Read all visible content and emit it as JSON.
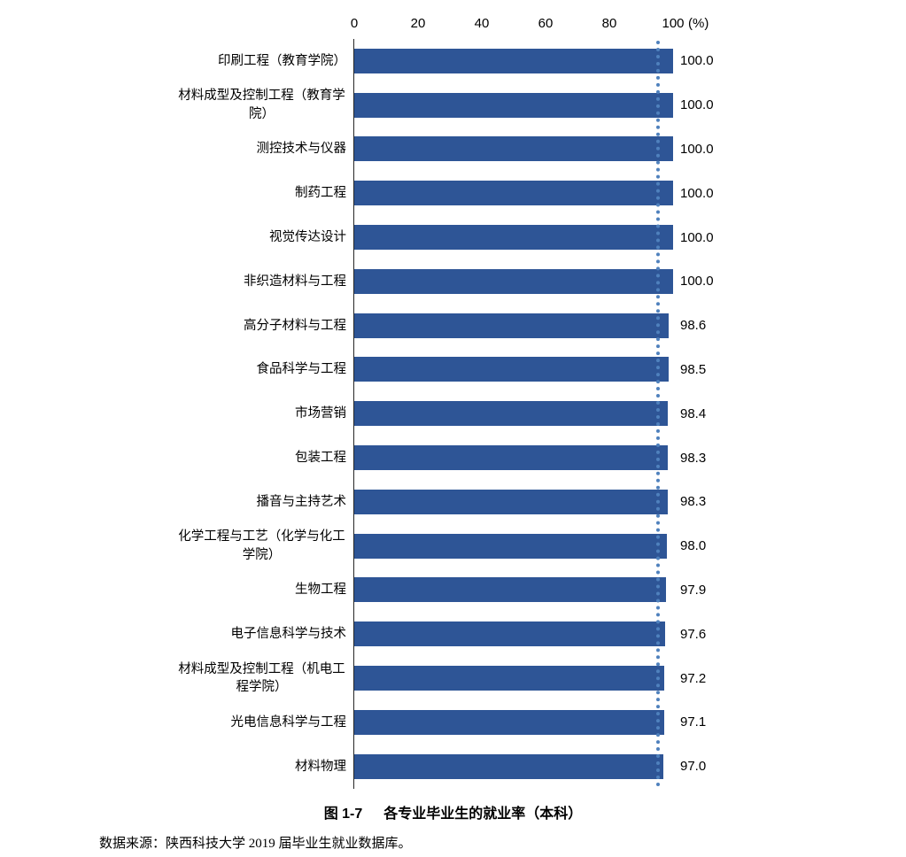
{
  "chart_data": {
    "type": "bar",
    "orientation": "horizontal",
    "title": "图 1-7　各专业毕业生的就业率（本科）",
    "categories": [
      "印刷工程（教育学院）",
      "材料成型及控制工程（教育学院）",
      "测控技术与仪器",
      "制药工程",
      "视觉传达设计",
      "非织造材料与工程",
      "高分子材料与工程",
      "食品科学与工程",
      "市场营销",
      "包装工程",
      "播音与主持艺术",
      "化学工程与工艺（化学与化工学院）",
      "生物工程",
      "电子信息科学与技术",
      "材料成型及控制工程（机电工程学院）",
      "光电信息科学与工程",
      "材料物理"
    ],
    "values": [
      100.0,
      100.0,
      100.0,
      100.0,
      100.0,
      100.0,
      98.6,
      98.5,
      98.4,
      98.3,
      98.3,
      98.0,
      97.9,
      97.6,
      97.2,
      97.1,
      97.0
    ],
    "value_labels": [
      "100.0",
      "100.0",
      "100.0",
      "100.0",
      "100.0",
      "100.0",
      "98.6",
      "98.5",
      "98.4",
      "98.3",
      "98.3",
      "98.0",
      "97.9",
      "97.6",
      "97.2",
      "97.1",
      "97.0"
    ],
    "x_ticks": [
      "0",
      "20",
      "40",
      "60",
      "80",
      "100"
    ],
    "x_tick_values": [
      0,
      20,
      40,
      60,
      80,
      100
    ],
    "x_unit": "(%)",
    "xlim": [
      0,
      100
    ],
    "reference_line_x": 94.7,
    "bar_color": "#2E5596",
    "reference_line_color": "#4F81BD",
    "axis_line_color": "#262626",
    "grid": "off",
    "legend": "none"
  },
  "figure": {
    "caption_prefix": "图 1-7",
    "caption_text": "各专业毕业生的就业率（本科）",
    "source_note": "数据来源：陕西科技大学 2019 届毕业生就业数据库。"
  }
}
